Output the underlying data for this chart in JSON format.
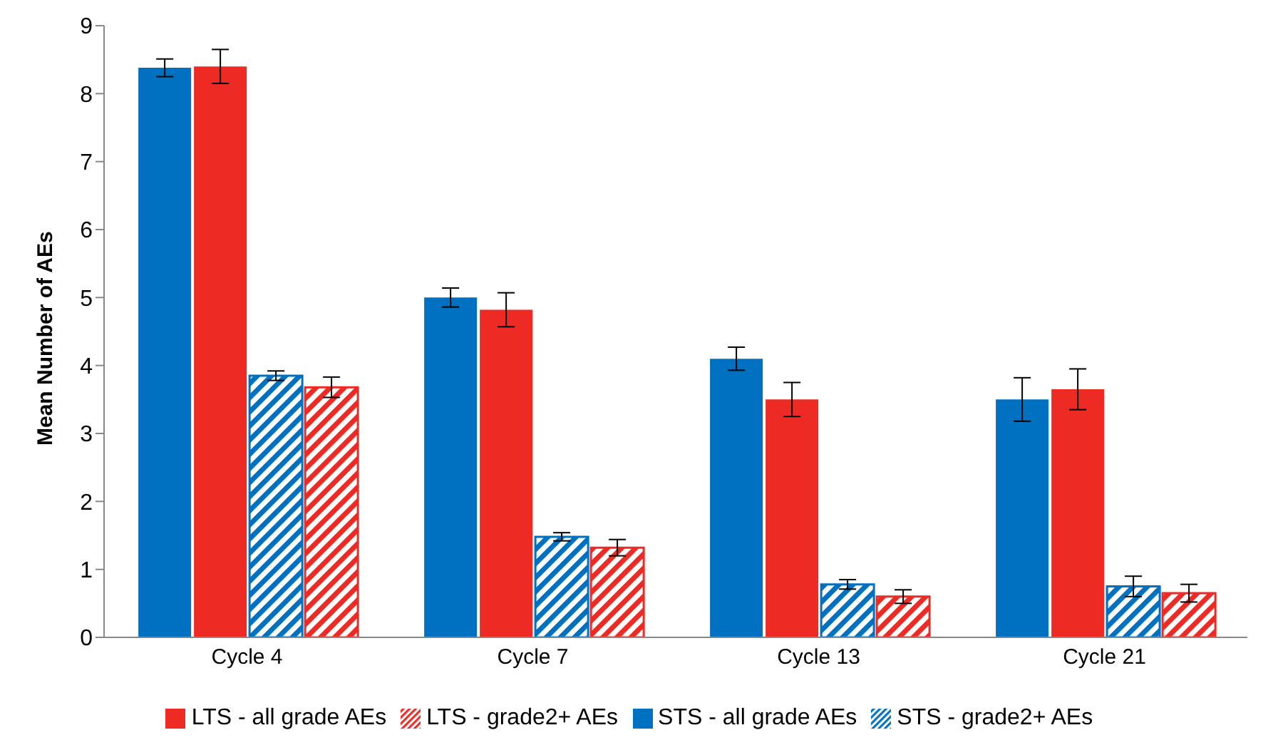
{
  "chart_data": {
    "type": "bar",
    "ylabel": "Mean Number of AEs",
    "categories": [
      "Cycle 4",
      "Cycle 7",
      "Cycle 13",
      "Cycle 21"
    ],
    "series": [
      {
        "name": "STS - all grade AEs",
        "color": "#0070c0",
        "values": [
          8.38,
          5.0,
          4.1,
          3.5
        ],
        "errors": [
          0.13,
          0.14,
          0.17,
          0.32
        ]
      },
      {
        "name": "LTS - all grade AEs",
        "color": "#ee2a24",
        "values": [
          8.4,
          4.82,
          3.5,
          3.65
        ],
        "errors": [
          0.25,
          0.25,
          0.25,
          0.3
        ]
      },
      {
        "name": "STS - grade2+ AEs",
        "color": "#0070c0",
        "values": [
          3.85,
          1.48,
          0.78,
          0.75
        ],
        "errors": [
          0.07,
          0.06,
          0.07,
          0.15
        ]
      },
      {
        "name": "LTS - grade2+ AEs",
        "color": "#ee2a24",
        "values": [
          3.68,
          1.32,
          0.6,
          0.65
        ],
        "errors": [
          0.15,
          0.12,
          0.1,
          0.13
        ]
      }
    ],
    "ylim": [
      0,
      9
    ],
    "yticks": [
      0,
      1,
      2,
      3,
      4,
      5,
      6,
      7,
      8,
      9
    ],
    "grid": false,
    "legend": "bottom"
  }
}
